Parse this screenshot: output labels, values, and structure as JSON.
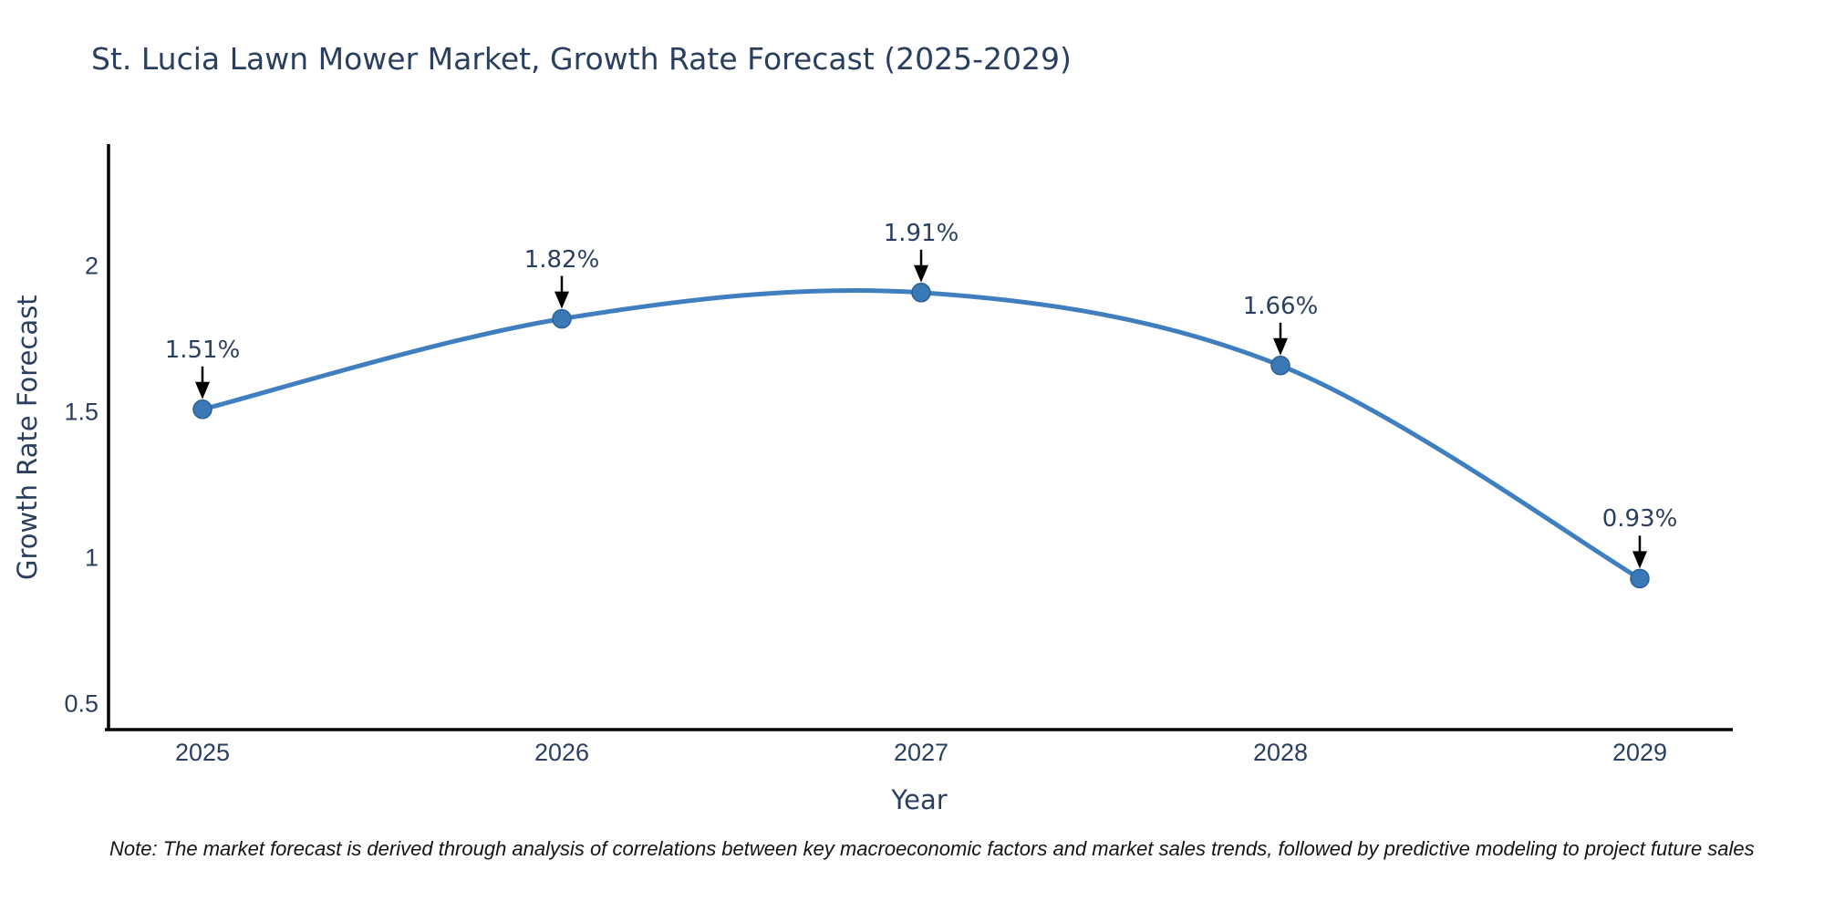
{
  "title": "St. Lucia Lawn Mower Market, Growth Rate Forecast (2025-2029)",
  "note": "Note: The market forecast is derived through analysis of correlations between key macroeconomic factors and market sales trends, followed by predictive modeling to project future sales",
  "chart_data": {
    "type": "line",
    "title": "St. Lucia Lawn Mower Market, Growth Rate Forecast (2025-2029)",
    "xlabel": "Year",
    "ylabel": "Growth Rate Forecast",
    "categories": [
      "2025",
      "2026",
      "2027",
      "2028",
      "2029"
    ],
    "values": [
      1.51,
      1.82,
      1.91,
      1.66,
      0.93
    ],
    "point_labels": [
      "1.51%",
      "1.82%",
      "1.91%",
      "1.66%",
      "0.93%"
    ],
    "y_ticks": [
      "0.5",
      "1",
      "1.5",
      "2"
    ],
    "y_tick_values": [
      0.5,
      1,
      1.5,
      2
    ],
    "ylim": [
      0.41,
      2.42
    ],
    "line_shape": "spline",
    "grid": false,
    "legend": "none",
    "colors": {
      "line": "#3f7fbf",
      "marker_fill": "#3a79b6",
      "marker_edge": "#2b5f96",
      "axis_spine": "#000000",
      "arrow": "#000000",
      "text": "#2a3f5f"
    }
  }
}
